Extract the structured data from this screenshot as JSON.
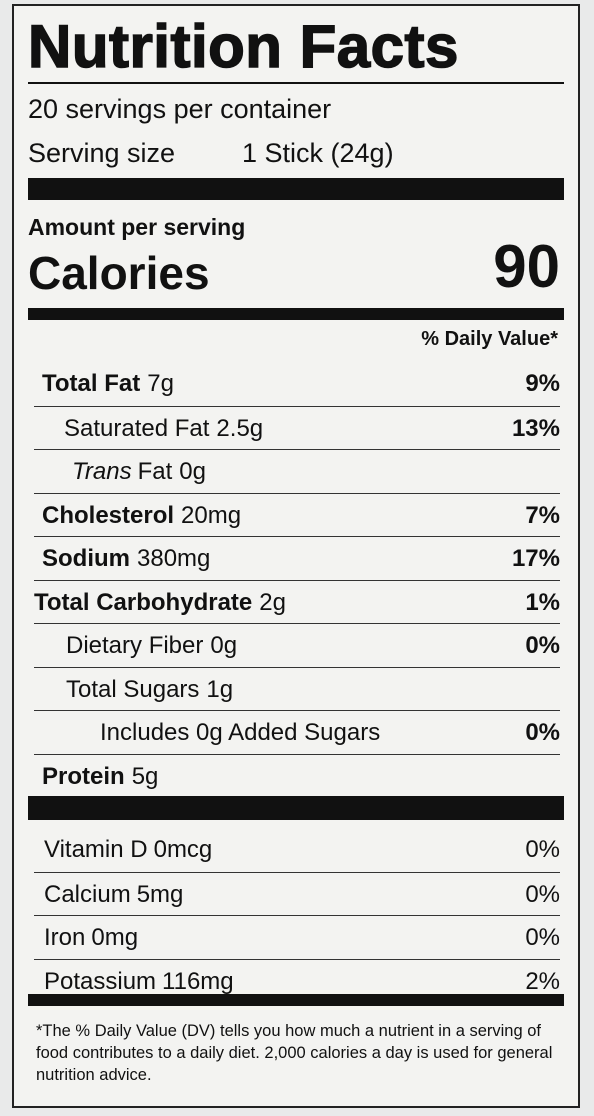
{
  "header": {
    "title": "Nutrition Facts",
    "servings": "20 servings per container",
    "serving_size_label": "Serving size",
    "serving_size": "1 Stick (24g)"
  },
  "calories": {
    "amount_per_serving": "Amount per serving",
    "label": "Calories",
    "value": "90"
  },
  "daily_value_header": "% Daily Value*",
  "nutrients": [
    {
      "name": "Total Fat",
      "amount": "7g",
      "dv": "9%"
    },
    {
      "name": "Saturated Fat",
      "amount": "2.5g",
      "dv": "13%"
    },
    {
      "name_italic": "Trans",
      "name": "Fat",
      "amount": "0g"
    },
    {
      "name": "Cholesterol",
      "amount": "20mg",
      "dv": "7%"
    },
    {
      "name": "Sodium",
      "amount": "380mg",
      "dv": "17%"
    },
    {
      "name": "Total Carbohydrate",
      "amount": "2g",
      "dv": "1%"
    },
    {
      "name": "Dietary Fiber",
      "amount": "0g",
      "dv": "0%"
    },
    {
      "name": "Total Sugars",
      "amount": "1g"
    },
    {
      "name": "Includes 0g Added Sugars",
      "dv": "0%"
    },
    {
      "name": "Protein",
      "amount": "5g"
    }
  ],
  "vitamins": [
    {
      "name": "Vitamin D",
      "amount": "0mcg",
      "dv": "0%"
    },
    {
      "name": "Calcium",
      "amount": "5mg",
      "dv": "0%"
    },
    {
      "name": "Iron",
      "amount": "0mg",
      "dv": "0%"
    },
    {
      "name": "Potassium",
      "amount": "116mg",
      "dv": "2%"
    }
  ],
  "footnote": "*The % Daily Value (DV) tells you how much a nutrient in a serving of food contributes to a daily diet. 2,000 calories a day is used for general nutrition advice."
}
